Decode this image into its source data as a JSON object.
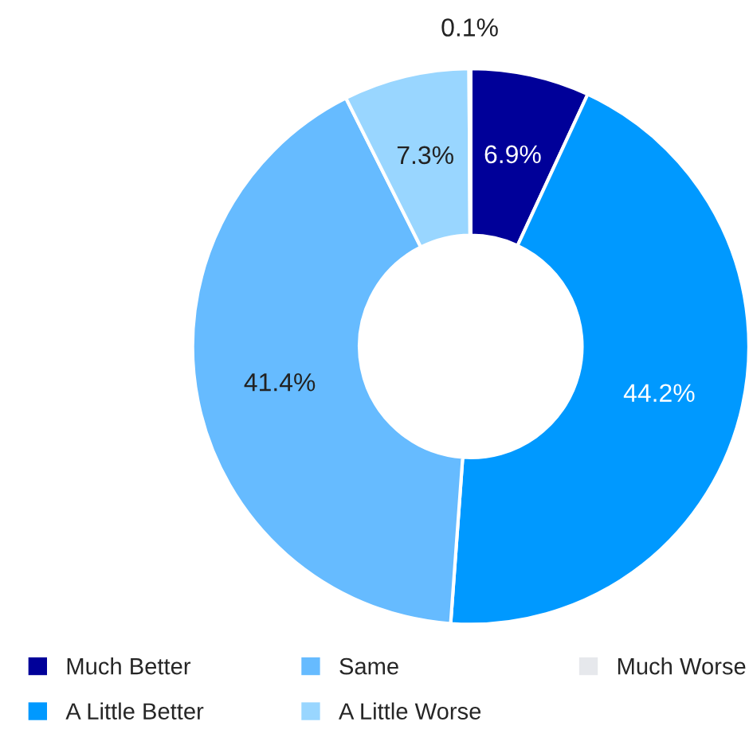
{
  "chart_data": {
    "type": "donut",
    "categories": [
      "Much Better",
      "A Little Better",
      "Same",
      "A Little Worse",
      "Much Worse"
    ],
    "values": [
      6.9,
      44.2,
      41.4,
      7.3,
      0.1
    ],
    "value_labels": [
      "6.9%",
      "44.2%",
      "41.4%",
      "7.3%",
      "0.1%"
    ],
    "colors": [
      "#000099",
      "#0099ff",
      "#66bbff",
      "#99d6ff",
      "#e6e8ec"
    ],
    "legend": "bottom"
  }
}
